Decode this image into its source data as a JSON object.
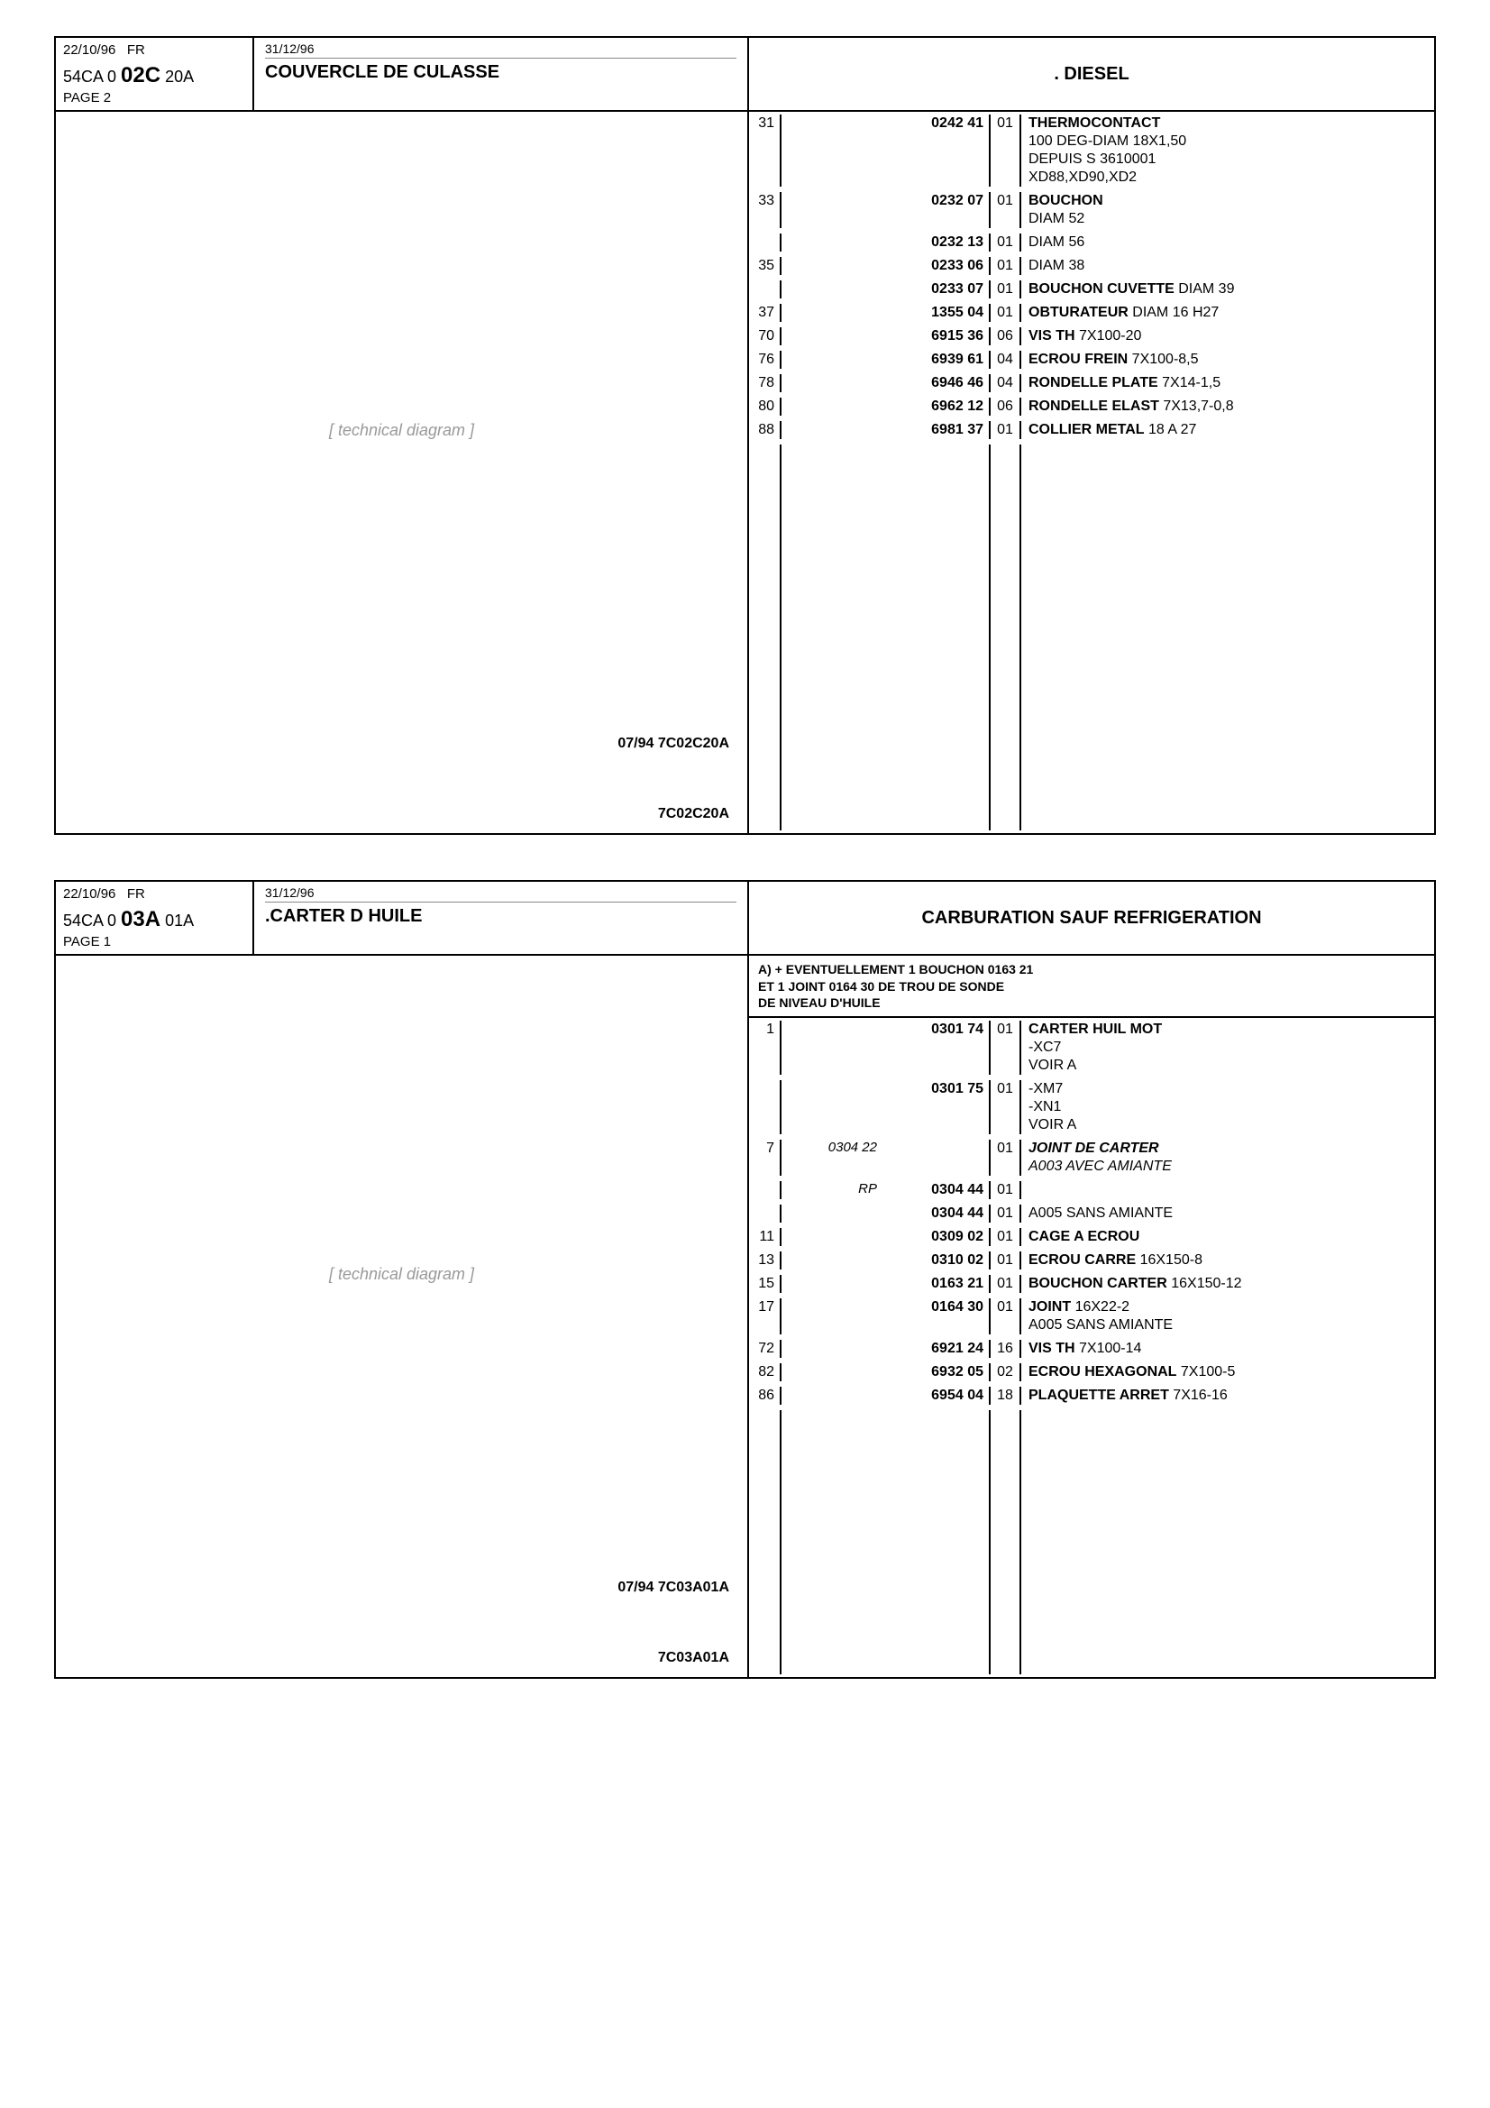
{
  "sections": [
    {
      "header": {
        "date": "22/10/96",
        "lang": "FR",
        "code_prefix": "54CA 0 ",
        "code_big": "02C",
        "code_suffix": " 20A",
        "page": "PAGE 2",
        "exp_date": "31/12/96",
        "title": "COUVERCLE DE CULASSE",
        "right_title": ". DIESEL"
      },
      "diagram": {
        "ref_mid": "07/94 7C02C20A",
        "ref_bot": "7C02C20A"
      },
      "note": "",
      "parts": [
        {
          "ref": "31",
          "extra": "",
          "part": "0242 41",
          "qty": "01",
          "desc_bold": "THERMOCONTACT",
          "desc_rest": "100 DEG-DIAM 18X1,50\nDEPUIS S 3610001\nXD88,XD90,XD2"
        },
        {
          "ref": "33",
          "extra": "",
          "part": "0232 07",
          "qty": "01",
          "desc_bold": "BOUCHON",
          "desc_rest": "DIAM 52"
        },
        {
          "ref": "",
          "extra": "",
          "part": "0232 13",
          "qty": "01",
          "desc_bold": "",
          "desc_rest": "DIAM 56"
        },
        {
          "ref": "35",
          "extra": "",
          "part": "0233 06",
          "qty": "01",
          "desc_bold": "",
          "desc_rest": "DIAM 38"
        },
        {
          "ref": "",
          "extra": "",
          "part": "0233 07",
          "qty": "01",
          "desc_bold": "BOUCHON CUVETTE",
          "desc_rest": " DIAM 39"
        },
        {
          "ref": "37",
          "extra": "",
          "part": "1355 04",
          "qty": "01",
          "desc_bold": "OBTURATEUR",
          "desc_rest": " DIAM 16 H27"
        },
        {
          "ref": "70",
          "extra": "",
          "part": "6915 36",
          "qty": "06",
          "desc_bold": "VIS TH",
          "desc_rest": " 7X100-20"
        },
        {
          "ref": "76",
          "extra": "",
          "part": "6939 61",
          "qty": "04",
          "desc_bold": "ECROU FREIN",
          "desc_rest": " 7X100-8,5"
        },
        {
          "ref": "78",
          "extra": "",
          "part": "6946 46",
          "qty": "04",
          "desc_bold": "RONDELLE PLATE",
          "desc_rest": " 7X14-1,5"
        },
        {
          "ref": "80",
          "extra": "",
          "part": "6962 12",
          "qty": "06",
          "desc_bold": "RONDELLE ELAST",
          "desc_rest": " 7X13,7-0,8"
        },
        {
          "ref": "88",
          "extra": "",
          "part": "6981 37",
          "qty": "01",
          "desc_bold": "COLLIER METAL",
          "desc_rest": " 18 A 27"
        }
      ]
    },
    {
      "header": {
        "date": "22/10/96",
        "lang": "FR",
        "code_prefix": "54CA 0 ",
        "code_big": "03A",
        "code_suffix": " 01A",
        "page": "PAGE 1",
        "exp_date": "31/12/96",
        "title": ".CARTER D HUILE",
        "right_title": "CARBURATION SAUF REFRIGERATION"
      },
      "diagram": {
        "ref_mid": "07/94 7C03A01A",
        "ref_bot": "7C03A01A"
      },
      "note": "A) + EVENTUELLEMENT 1 BOUCHON 0163 21\nET 1 JOINT 0164 30 DE TROU DE SONDE\nDE NIVEAU D'HUILE",
      "parts": [
        {
          "ref": "1",
          "extra": "",
          "part": "0301 74",
          "qty": "01",
          "desc_bold": "CARTER HUIL MOT",
          "desc_rest": "-XC7\nVOIR A"
        },
        {
          "ref": "",
          "extra": "",
          "part": "0301 75",
          "qty": "01",
          "desc_bold": "",
          "desc_rest": "-XM7\n-XN1\nVOIR A"
        },
        {
          "ref": "7",
          "extra": "0304 22",
          "part": "",
          "qty": "01",
          "desc_bold": "JOINT DE CARTER",
          "desc_rest": "A003 AVEC AMIANTE",
          "italic": true
        },
        {
          "ref": "",
          "extra": "RP",
          "part": "0304 44",
          "qty": "01",
          "desc_bold": "",
          "desc_rest": ""
        },
        {
          "ref": "",
          "extra": "",
          "part": "0304 44",
          "qty": "01",
          "desc_bold": "",
          "desc_rest": "A005 SANS AMIANTE"
        },
        {
          "ref": "11",
          "extra": "",
          "part": "0309 02",
          "qty": "01",
          "desc_bold": "CAGE A ECROU",
          "desc_rest": ""
        },
        {
          "ref": "13",
          "extra": "",
          "part": "0310 02",
          "qty": "01",
          "desc_bold": "ECROU CARRE",
          "desc_rest": " 16X150-8"
        },
        {
          "ref": "15",
          "extra": "",
          "part": "0163 21",
          "qty": "01",
          "desc_bold": "BOUCHON CARTER",
          "desc_rest": " 16X150-12"
        },
        {
          "ref": "17",
          "extra": "",
          "part": "0164 30",
          "qty": "01",
          "desc_bold": "JOINT",
          "desc_rest": " 16X22-2\nA005 SANS AMIANTE"
        },
        {
          "ref": "72",
          "extra": "",
          "part": "6921 24",
          "qty": "16",
          "desc_bold": "VIS TH",
          "desc_rest": " 7X100-14"
        },
        {
          "ref": "82",
          "extra": "",
          "part": "6932 05",
          "qty": "02",
          "desc_bold": "ECROU HEXAGONAL",
          "desc_rest": " 7X100-5"
        },
        {
          "ref": "86",
          "extra": "",
          "part": "6954 04",
          "qty": "18",
          "desc_bold": "PLAQUETTE ARRET",
          "desc_rest": " 7X16-16"
        }
      ]
    }
  ],
  "diagram_placeholder_text": "[ technical diagram ]"
}
